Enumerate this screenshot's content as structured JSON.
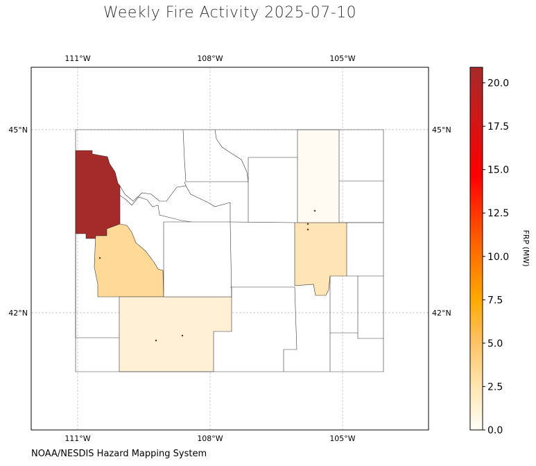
{
  "title": "Weekly Fire Activity 2025-07-10",
  "credit": "NOAA/NESDIS Hazard Mapping System",
  "map": {
    "lon_ticks": [
      "111°W",
      "108°W",
      "105°W"
    ],
    "lat_ticks": [
      "45°N",
      "42°N"
    ],
    "colors": {
      "frp_20_9": "#a52a2a",
      "frp_4_0": "#ffd998",
      "frp_3_5": "#ffe4b5",
      "frp_1_2": "#fff0d6",
      "frp_0_3": "#fffaf2"
    }
  },
  "colorbar": {
    "label": "FRP (MW)",
    "ticks": [
      "0.0",
      "2.5",
      "5.0",
      "7.5",
      "10.0",
      "12.5",
      "15.0",
      "17.5",
      "20.0"
    ],
    "min": 0,
    "max": 20.9,
    "stops": [
      "#fffef9",
      "#ffd28a",
      "#ffb000",
      "#ff7000",
      "#ff0000",
      "#a52a2a"
    ]
  }
}
